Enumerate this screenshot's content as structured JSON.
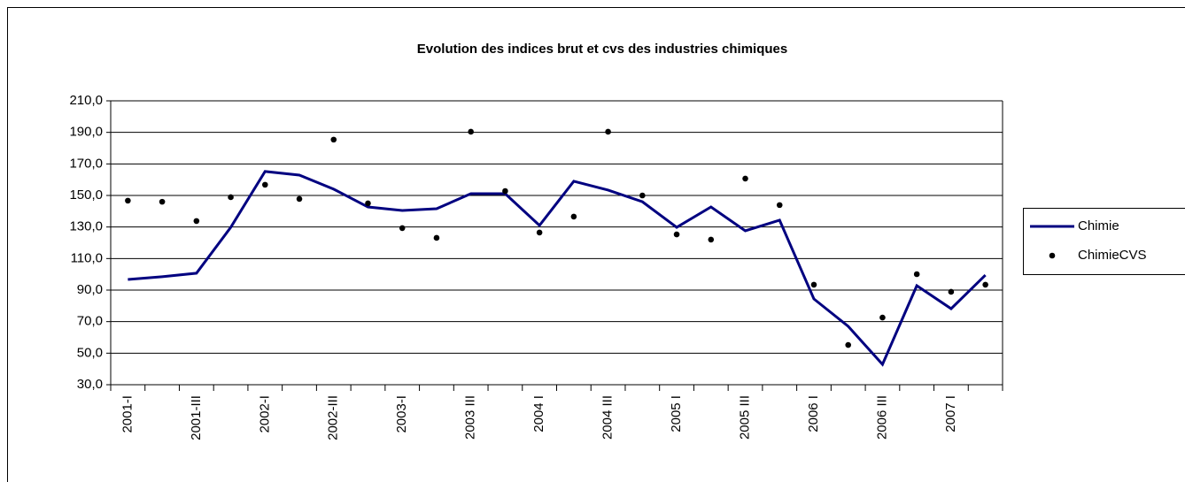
{
  "chart_data": {
    "type": "line",
    "title": "Evolution des indices brut et cvs des industries chimiques",
    "categories": [
      "2001-I",
      null,
      "2001-III",
      null,
      "2002-I",
      null,
      "2002-III",
      null,
      "2003-I",
      null,
      "2003 III",
      null,
      "2004 I",
      null,
      "2004 III",
      null,
      "2005 I",
      null,
      "2005 III",
      null,
      "2006 I",
      null,
      "2006 III",
      null,
      "2007 I",
      null
    ],
    "series": [
      {
        "name": "Chimie",
        "color": "#000080",
        "style": "line",
        "values": [
          96.7,
          98.5,
          100.7,
          129.8,
          165.2,
          162.9,
          154,
          142.7,
          140.5,
          141.6,
          151.1,
          151.1,
          131,
          159,
          153.4,
          146,
          129.8,
          142.7,
          127.6,
          134.3,
          84.4,
          67,
          42.9,
          92.8,
          78.2,
          99.5
        ]
      },
      {
        "name": "ChimieCVS",
        "color": "#000000",
        "style": "markers",
        "values": [
          146.7,
          146,
          133.8,
          148.9,
          156.8,
          147.8,
          185.4,
          145,
          129.3,
          123.1,
          190.4,
          152.8,
          126.5,
          136.6,
          190.4,
          150,
          125.3,
          122,
          160.7,
          143.9,
          93.4,
          55.2,
          72.6,
          100.1,
          88.9,
          93.4
        ]
      }
    ],
    "ylim": [
      30,
      210
    ],
    "yticks": [
      {
        "value": 30,
        "label": "30,0"
      },
      {
        "value": 50,
        "label": "50,0"
      },
      {
        "value": 70,
        "label": "70,0"
      },
      {
        "value": 90,
        "label": "90,0"
      },
      {
        "value": 110,
        "label": "110,0"
      },
      {
        "value": 130,
        "label": "130,0"
      },
      {
        "value": 150,
        "label": "150,0"
      },
      {
        "value": 170,
        "label": "170,0"
      },
      {
        "value": 190,
        "label": "190,0"
      },
      {
        "value": 210,
        "label": "210,0"
      }
    ],
    "grid": true,
    "legend": "right"
  }
}
